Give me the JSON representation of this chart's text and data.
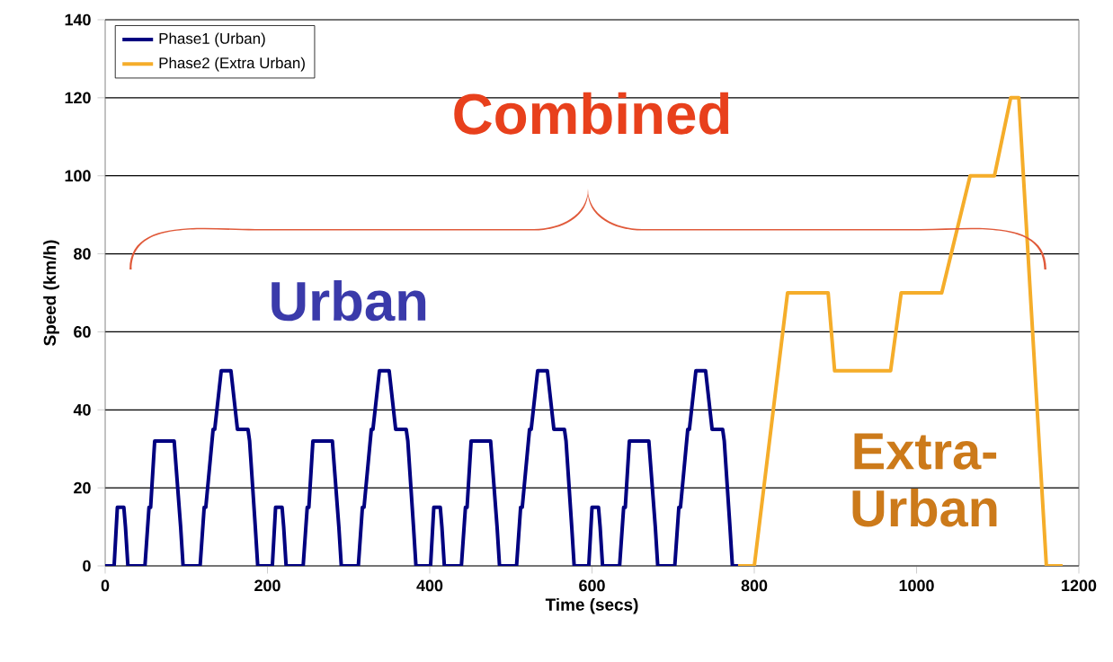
{
  "chart_data": {
    "type": "line",
    "xlabel": "Time (secs)",
    "ylabel": "Speed (km/h)",
    "xlim": [
      0,
      1200
    ],
    "xticks": [
      0,
      200,
      400,
      600,
      800,
      1000,
      1200
    ],
    "ylim": [
      0,
      140
    ],
    "yticks": [
      0,
      20,
      40,
      60,
      80,
      100,
      120,
      140
    ],
    "grid": "y",
    "legend": "top left",
    "marker": "none",
    "line_style": "solid",
    "annotations": [
      "Combined",
      "Urban",
      "Extra-Urban"
    ],
    "series": [
      {
        "name": "Phase1 (Urban)",
        "color": "#000080",
        "x": [
          0,
          11,
          15,
          23,
          25,
          28,
          49,
          54,
          56,
          61,
          85,
          93,
          96,
          117,
          122,
          124,
          133,
          135,
          143,
          155,
          163,
          176,
          178,
          185,
          188,
          195,
          206,
          210,
          218,
          220,
          223,
          244,
          249,
          251,
          256,
          280,
          288,
          291,
          312,
          317,
          319,
          328,
          330,
          338,
          350,
          358,
          371,
          373,
          380,
          383,
          390,
          401,
          405,
          413,
          415,
          418,
          439,
          444,
          446,
          451,
          475,
          483,
          486,
          507,
          512,
          514,
          523,
          525,
          533,
          545,
          553,
          566,
          568,
          575,
          578,
          585,
          596,
          600,
          608,
          610,
          613,
          634,
          639,
          641,
          646,
          670,
          678,
          681,
          702,
          707,
          709,
          718,
          720,
          728,
          740,
          748,
          761,
          763,
          770,
          773,
          780
        ],
        "values": [
          0,
          0,
          15,
          15,
          10,
          0,
          0,
          15,
          15,
          32,
          32,
          10,
          0,
          0,
          15,
          15,
          35,
          35,
          50,
          50,
          35,
          35,
          32,
          10,
          0,
          0,
          0,
          15,
          15,
          10,
          0,
          0,
          15,
          15,
          32,
          32,
          10,
          0,
          0,
          15,
          15,
          35,
          35,
          50,
          50,
          35,
          35,
          32,
          10,
          0,
          0,
          0,
          15,
          15,
          10,
          0,
          0,
          15,
          15,
          32,
          32,
          10,
          0,
          0,
          15,
          15,
          35,
          35,
          50,
          50,
          35,
          35,
          32,
          10,
          0,
          0,
          0,
          15,
          15,
          10,
          0,
          0,
          15,
          15,
          32,
          32,
          10,
          0,
          0,
          15,
          15,
          35,
          35,
          50,
          50,
          35,
          35,
          32,
          10,
          0,
          0
        ]
      },
      {
        "name": "Phase2 (Extra Urban)",
        "color": "#f5ad2a",
        "x": [
          780,
          800,
          841,
          891,
          899,
          968,
          981,
          1031,
          1066,
          1096,
          1116,
          1126,
          1160,
          1180
        ],
        "values": [
          0,
          0,
          70,
          70,
          50,
          50,
          70,
          70,
          100,
          100,
          120,
          120,
          0,
          0
        ]
      }
    ]
  }
}
